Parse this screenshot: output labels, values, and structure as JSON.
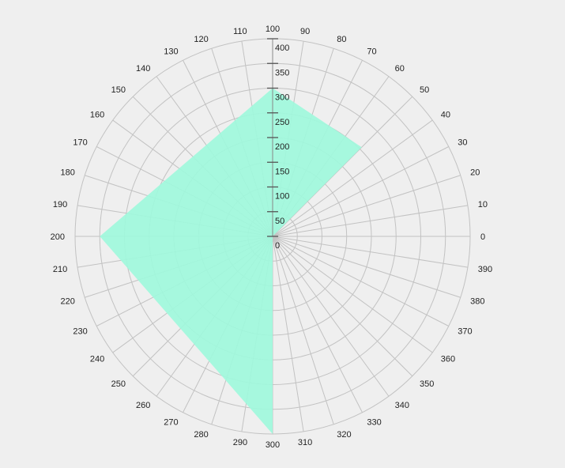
{
  "chart_data": {
    "type": "area",
    "subtype": "polar",
    "angle_unit_full_circle": 400,
    "angle_ticks": [
      0,
      10,
      20,
      30,
      40,
      50,
      60,
      70,
      80,
      90,
      100,
      110,
      120,
      130,
      140,
      150,
      160,
      170,
      180,
      190,
      200,
      210,
      220,
      230,
      240,
      250,
      260,
      270,
      280,
      290,
      300,
      310,
      320,
      330,
      340,
      350,
      360,
      370,
      380,
      390
    ],
    "radial_ticks": [
      0,
      50,
      100,
      150,
      200,
      250,
      300,
      350,
      400
    ],
    "rlim": [
      0,
      400
    ],
    "series": [
      {
        "angles": [
          0,
          100,
          200,
          300
        ],
        "values": [
          0,
          300,
          350,
          400
        ],
        "apex_points": [
          {
            "angle": 0,
            "r": 0
          },
          {
            "angle": 50,
            "r": 255
          },
          {
            "angle": 100,
            "r": 300
          },
          {
            "angle": 200,
            "r": 350
          },
          {
            "angle": 300,
            "r": 400
          }
        ],
        "color": "#9ff9dc"
      }
    ],
    "grid": true,
    "colors": {
      "background": "#efefef",
      "grid": "#c2c2c2",
      "fill": "#9ff9dc"
    }
  }
}
